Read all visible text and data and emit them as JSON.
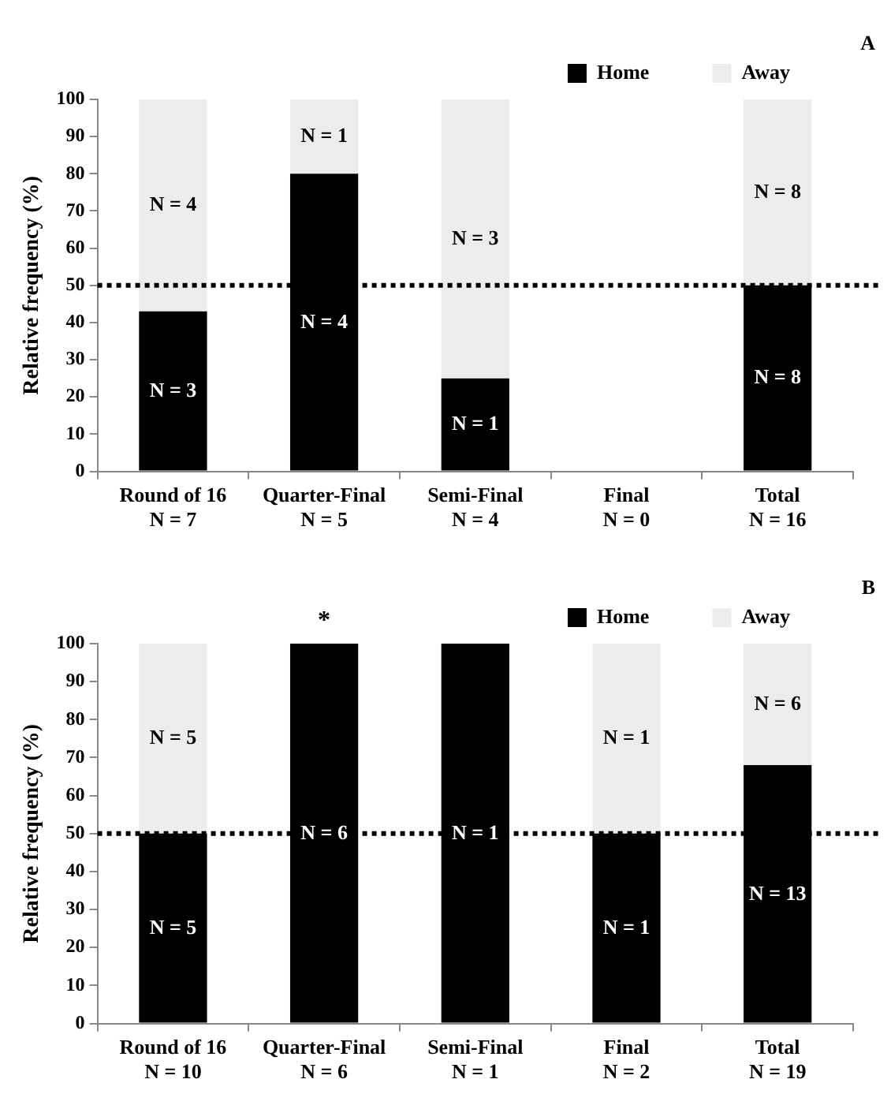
{
  "chart_data": [
    {
      "type": "bar",
      "ylabel": "Relative frequency (%)",
      "categories": [
        "Round of 16\nN = 7",
        "Quarter-Final\nN = 5",
        "Semi-Final\nN = 4",
        "Final\nN = 0",
        "Total\nN = 16"
      ],
      "stacked": true,
      "series": [
        {
          "name": "Home",
          "color": "#000000",
          "values": [
            43,
            80,
            25,
            null,
            50
          ]
        },
        {
          "name": "Away",
          "color": "#ececec",
          "values": [
            57,
            20,
            75,
            null,
            50
          ]
        }
      ],
      "ylim": [
        0,
        100
      ],
      "yticks": [
        0,
        10,
        20,
        30,
        40,
        50,
        60,
        70,
        80,
        90,
        100
      ],
      "grid": false,
      "legend": "top right",
      "ref_lines": [
        {
          "axis": "y",
          "value": 50,
          "line_style": "dotted",
          "color": "#000000"
        }
      ],
      "annotations": [
        "N = 3",
        "N = 4",
        "N = 4",
        "N = 1",
        "N = 1",
        "N = 3",
        "N = 8",
        "N = 8",
        "A"
      ]
    },
    {
      "type": "bar",
      "ylabel": "Relative frequency (%)",
      "categories": [
        "Round of 16\nN = 10",
        "Quarter-Final\nN = 6",
        "Semi-Final\nN = 1",
        "Final\nN = 2",
        "Total\nN = 19"
      ],
      "stacked": true,
      "series": [
        {
          "name": "Home",
          "color": "#000000",
          "values": [
            50,
            100,
            100,
            50,
            68
          ]
        },
        {
          "name": "Away",
          "color": "#ececec",
          "values": [
            50,
            0,
            0,
            50,
            32
          ]
        }
      ],
      "ylim": [
        0,
        100
      ],
      "yticks": [
        0,
        10,
        20,
        30,
        40,
        50,
        60,
        70,
        80,
        90,
        100
      ],
      "grid": false,
      "legend": "top right",
      "ref_lines": [
        {
          "axis": "y",
          "value": 50,
          "line_style": "dotted",
          "color": "#000000"
        }
      ],
      "annotations": [
        "N = 5",
        "N = 5",
        "N = 6",
        "N = 1",
        "N = 1",
        "N = 1",
        "N = 13",
        "N = 6",
        {
          "text": "*",
          "x": "Quarter-Final\nN = 6",
          "y": 100
        },
        "B"
      ]
    }
  ]
}
